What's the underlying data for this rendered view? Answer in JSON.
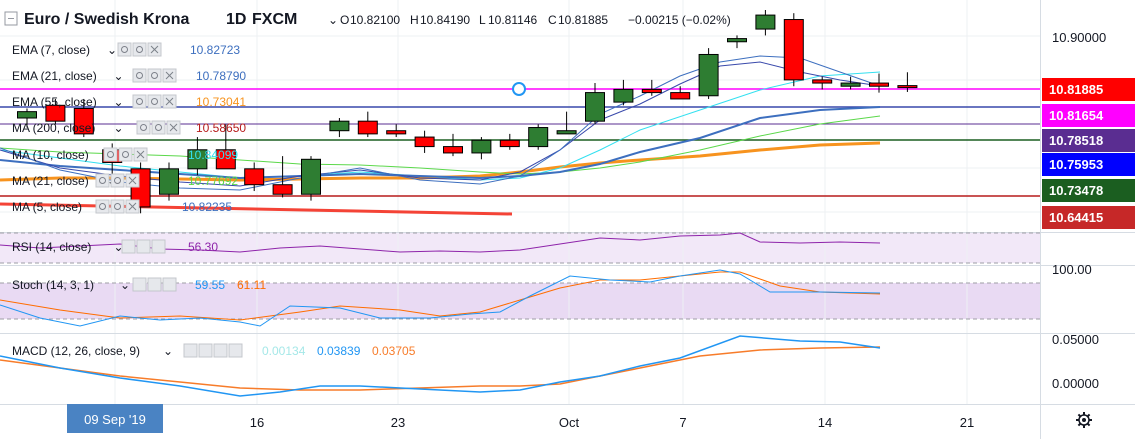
{
  "header": {
    "symbol": "Euro / Swedish Krona",
    "interval": "1D",
    "source": "FXCM",
    "open_label": "O",
    "open": "10.82100",
    "high_label": "H",
    "high": "10.84190",
    "low_label": "L",
    "low": "10.81146",
    "close_label": "C",
    "close": "10.81885",
    "change": "−0.00215 (−0.02%)"
  },
  "indicators": [
    {
      "label": "EMA (7, close)",
      "value": "10.82723",
      "color": "#3d6fbf"
    },
    {
      "label": "EMA (21, close)",
      "value": "10.78790",
      "color": "#3d6fbf"
    },
    {
      "label": "EMA (55, close)",
      "value": "10.73041",
      "color": "#f7931e"
    },
    {
      "label": "MA (200, close)",
      "value": "10.58650",
      "color": "#b71c1c"
    },
    {
      "label": "MA (10, close)",
      "value": "10.84099",
      "color": "#33e0f0"
    },
    {
      "label": "MA (21, close)",
      "value": "10.77692",
      "color": "#5bd84a"
    },
    {
      "label": "MA (5, close)",
      "value": "10.82235",
      "color": "#3d6fbf"
    }
  ],
  "rsi": {
    "label": "RSI (14, close)",
    "value": "56.30",
    "color": "#8e24aa"
  },
  "stoch": {
    "label": "Stoch (14, 3, 1)",
    "k": "59.55",
    "d": "61.11",
    "k_color": "#2196f3",
    "d_color": "#ff6d00"
  },
  "macd": {
    "label": "MACD (12, 26, close, 9)",
    "hist": "0.00134",
    "macd": "0.03839",
    "signal": "0.03705",
    "hist_color": "#a5e8e8",
    "macd_color": "#2196f3",
    "signal_color": "#f77c2a"
  },
  "price_axis": {
    "ticks": [
      "10.90000"
    ],
    "tags": [
      {
        "label": "10.81885",
        "color": "#ff0000"
      },
      {
        "label": "10.81654",
        "color": "#ff00ff"
      },
      {
        "label": "10.78518",
        "color": "#5a2d91"
      },
      {
        "label": "10.75953",
        "color": "#0000ff"
      },
      {
        "label": "10.73478",
        "color": "#1b5e20"
      },
      {
        "label": "10.64415",
        "color": "#c62828"
      }
    ]
  },
  "stoch_axis": {
    "ticks": [
      "100.00"
    ]
  },
  "macd_axis": {
    "ticks": [
      "0.05000",
      "0.00000"
    ]
  },
  "date_axis": {
    "highlight": "09 Sep '19",
    "labels": [
      "16",
      "23",
      "Oct",
      "7",
      "14",
      "21"
    ]
  },
  "settings_icon": "gear-icon",
  "chart_data": {
    "type": "candlestick",
    "title": "Euro / Swedish Krona",
    "ylim": [
      10.6,
      10.94
    ],
    "candles": [
      {
        "o": 10.77,
        "h": 10.785,
        "l": 10.755,
        "c": 10.78
      },
      {
        "o": 10.79,
        "h": 10.8,
        "l": 10.76,
        "c": 10.765
      },
      {
        "o": 10.785,
        "h": 10.8,
        "l": 10.74,
        "c": 10.745
      },
      {
        "o": 10.72,
        "h": 10.73,
        "l": 10.68,
        "c": 10.7
      },
      {
        "o": 10.69,
        "h": 10.7,
        "l": 10.62,
        "c": 10.63
      },
      {
        "o": 10.65,
        "h": 10.7,
        "l": 10.64,
        "c": 10.69
      },
      {
        "o": 10.69,
        "h": 10.74,
        "l": 10.68,
        "c": 10.72
      },
      {
        "o": 10.72,
        "h": 10.76,
        "l": 10.69,
        "c": 10.69
      },
      {
        "o": 10.69,
        "h": 10.7,
        "l": 10.655,
        "c": 10.665
      },
      {
        "o": 10.665,
        "h": 10.71,
        "l": 10.645,
        "c": 10.65
      },
      {
        "o": 10.65,
        "h": 10.71,
        "l": 10.64,
        "c": 10.705
      },
      {
        "o": 10.75,
        "h": 10.77,
        "l": 10.74,
        "c": 10.765
      },
      {
        "o": 10.765,
        "h": 10.78,
        "l": 10.74,
        "c": 10.745
      },
      {
        "o": 10.75,
        "h": 10.76,
        "l": 10.74,
        "c": 10.745
      },
      {
        "o": 10.74,
        "h": 10.75,
        "l": 10.715,
        "c": 10.725
      },
      {
        "o": 10.725,
        "h": 10.745,
        "l": 10.71,
        "c": 10.715
      },
      {
        "o": 10.715,
        "h": 10.74,
        "l": 10.705,
        "c": 10.735
      },
      {
        "o": 10.735,
        "h": 10.745,
        "l": 10.72,
        "c": 10.725
      },
      {
        "o": 10.725,
        "h": 10.76,
        "l": 10.72,
        "c": 10.755
      },
      {
        "o": 10.745,
        "h": 10.78,
        "l": 10.745,
        "c": 10.75
      },
      {
        "o": 10.765,
        "h": 10.825,
        "l": 10.76,
        "c": 10.81
      },
      {
        "o": 10.795,
        "h": 10.83,
        "l": 10.79,
        "c": 10.815
      },
      {
        "o": 10.815,
        "h": 10.83,
        "l": 10.805,
        "c": 10.81
      },
      {
        "o": 10.81,
        "h": 10.82,
        "l": 10.8,
        "c": 10.8
      },
      {
        "o": 10.805,
        "h": 10.88,
        "l": 10.8,
        "c": 10.87
      },
      {
        "o": 10.89,
        "h": 10.9,
        "l": 10.88,
        "c": 10.895
      },
      {
        "o": 10.91,
        "h": 10.94,
        "l": 10.9,
        "c": 10.932
      },
      {
        "o": 10.925,
        "h": 10.935,
        "l": 10.82,
        "c": 10.83
      },
      {
        "o": 10.83,
        "h": 10.835,
        "l": 10.815,
        "c": 10.825
      },
      {
        "o": 10.82,
        "h": 10.835,
        "l": 10.815,
        "c": 10.825
      },
      {
        "o": 10.825,
        "h": 10.84,
        "l": 10.81,
        "c": 10.82
      },
      {
        "o": 10.821,
        "h": 10.842,
        "l": 10.811,
        "c": 10.819
      }
    ]
  }
}
